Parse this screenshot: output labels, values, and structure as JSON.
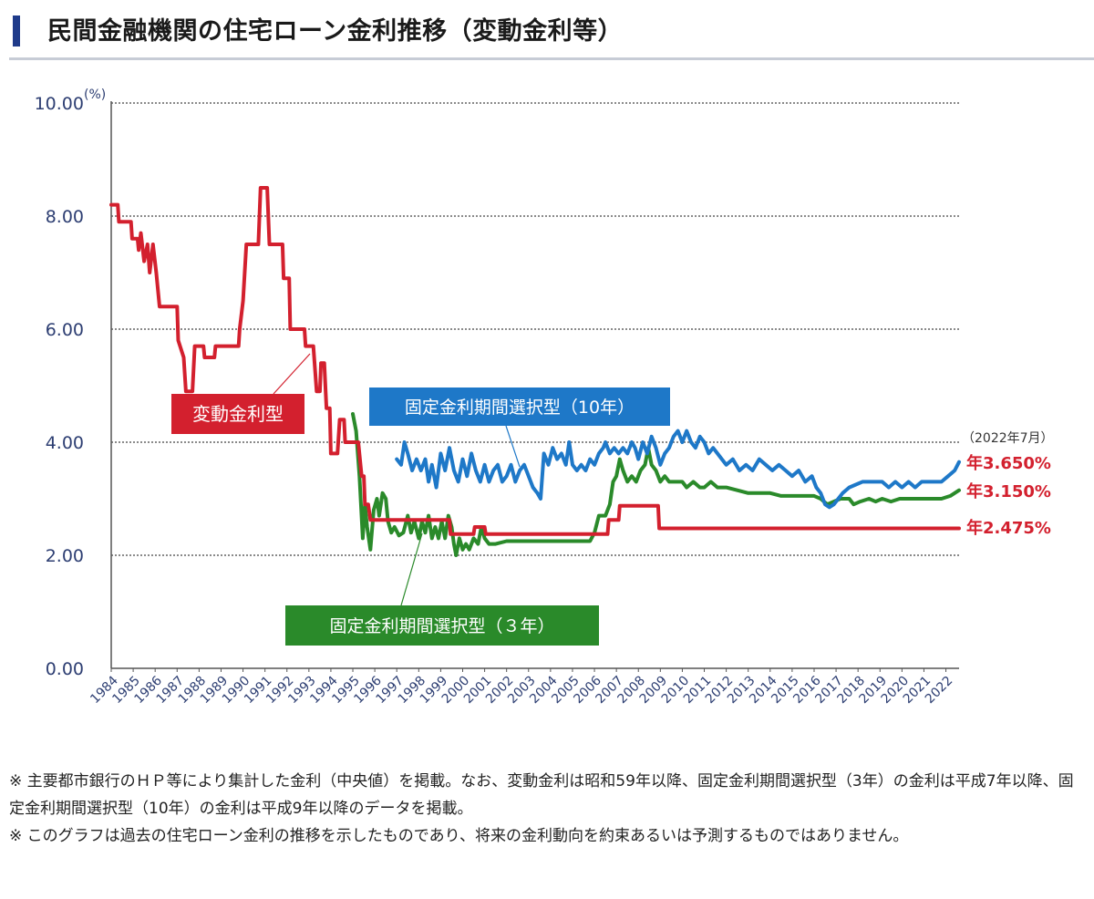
{
  "page": {
    "title": "民間金融機関の住宅ローン金利推移（変動金利等）",
    "notes": [
      "※ 主要都市銀行のＨＰ等により集計した金利（中央値）を掲載。なお、変動金利は昭和59年以降、固定金利期間選択型（3年）の金利は平成7年以降、固定金利期間選択型（10年）の金利は平成9年以降のデータを掲載。",
      "※ このグラフは過去の住宅ローン金利の推移を示したものであり、将来の金利動向を約束あるいは予測するものではありません。"
    ]
  },
  "chart_data": {
    "type": "line",
    "ylabel": "(%)",
    "ylim": [
      0,
      10
    ],
    "yticks": [
      "0.00",
      "2.00",
      "4.00",
      "6.00",
      "8.00",
      "10.00"
    ],
    "xlim": [
      1984,
      2022.6
    ],
    "xticks": [
      "1984",
      "1985",
      "1986",
      "1987",
      "1988",
      "1989",
      "1990",
      "1991",
      "1992",
      "1993",
      "1994",
      "1995",
      "1996",
      "1997",
      "1998",
      "1999",
      "2000",
      "2001",
      "2002",
      "2003",
      "2004",
      "2005",
      "2006",
      "2007",
      "2008",
      "2009",
      "2010",
      "2011",
      "2012",
      "2013",
      "2014",
      "2015",
      "2016",
      "2017",
      "2018",
      "2019",
      "2020",
      "2021",
      "2022"
    ],
    "grid": "horizontal dotted",
    "date_note": "（2022年7月）",
    "series": [
      {
        "name": "変動金利型",
        "color": "#d3202e",
        "end_label": "年2.475%",
        "points": [
          [
            1984,
            8.2
          ],
          [
            1984.3,
            8.2
          ],
          [
            1984.35,
            7.9
          ],
          [
            1984.9,
            7.9
          ],
          [
            1984.95,
            7.6
          ],
          [
            1985.2,
            7.6
          ],
          [
            1985.25,
            7.4
          ],
          [
            1985.35,
            7.7
          ],
          [
            1985.5,
            7.2
          ],
          [
            1985.65,
            7.5
          ],
          [
            1985.75,
            7.0
          ],
          [
            1985.9,
            7.5
          ],
          [
            1986.05,
            7.0
          ],
          [
            1986.2,
            6.4
          ],
          [
            1987.0,
            6.4
          ],
          [
            1987.05,
            5.8
          ],
          [
            1987.3,
            5.5
          ],
          [
            1987.4,
            4.9
          ],
          [
            1987.7,
            4.9
          ],
          [
            1987.8,
            5.7
          ],
          [
            1988.2,
            5.7
          ],
          [
            1988.25,
            5.5
          ],
          [
            1988.7,
            5.5
          ],
          [
            1988.75,
            5.7
          ],
          [
            1989.8,
            5.7
          ],
          [
            1989.85,
            6.0
          ],
          [
            1990.0,
            6.5
          ],
          [
            1990.15,
            7.5
          ],
          [
            1990.7,
            7.5
          ],
          [
            1990.8,
            8.5
          ],
          [
            1991.1,
            8.5
          ],
          [
            1991.2,
            7.5
          ],
          [
            1991.8,
            7.5
          ],
          [
            1991.85,
            6.9
          ],
          [
            1992.1,
            6.9
          ],
          [
            1992.15,
            6.0
          ],
          [
            1992.8,
            6.0
          ],
          [
            1992.85,
            5.7
          ],
          [
            1993.2,
            5.7
          ],
          [
            1993.35,
            4.9
          ],
          [
            1993.5,
            4.9
          ],
          [
            1993.55,
            5.4
          ],
          [
            1993.7,
            5.4
          ],
          [
            1993.8,
            4.6
          ],
          [
            1993.95,
            4.6
          ],
          [
            1994.0,
            3.8
          ],
          [
            1994.3,
            3.8
          ],
          [
            1994.4,
            4.4
          ],
          [
            1994.6,
            4.4
          ],
          [
            1994.65,
            4.0
          ],
          [
            1995.25,
            4.0
          ],
          [
            1995.4,
            3.4
          ],
          [
            1995.5,
            3.4
          ],
          [
            1995.55,
            2.9
          ],
          [
            1995.7,
            2.9
          ],
          [
            1995.8,
            2.625
          ],
          [
            1999.4,
            2.625
          ],
          [
            1999.45,
            2.375
          ],
          [
            2000.5,
            2.375
          ],
          [
            2000.55,
            2.5
          ],
          [
            2001.0,
            2.5
          ],
          [
            2001.05,
            2.375
          ],
          [
            2006.6,
            2.375
          ],
          [
            2006.65,
            2.625
          ],
          [
            2007.1,
            2.625
          ],
          [
            2007.15,
            2.875
          ],
          [
            2008.9,
            2.875
          ],
          [
            2008.95,
            2.475
          ],
          [
            2022.6,
            2.475
          ]
        ]
      },
      {
        "name": "固定金利期間選択型（１０年）",
        "color": "#1e78c8",
        "end_label": "年3.650%",
        "points": [
          [
            1997.0,
            3.7
          ],
          [
            1997.2,
            3.6
          ],
          [
            1997.35,
            4.0
          ],
          [
            1997.5,
            3.8
          ],
          [
            1997.7,
            3.5
          ],
          [
            1997.9,
            3.7
          ],
          [
            1998.1,
            3.5
          ],
          [
            1998.3,
            3.7
          ],
          [
            1998.45,
            3.3
          ],
          [
            1998.6,
            3.6
          ],
          [
            1998.8,
            3.2
          ],
          [
            1999.0,
            3.8
          ],
          [
            1999.2,
            3.5
          ],
          [
            1999.4,
            3.9
          ],
          [
            1999.6,
            3.5
          ],
          [
            1999.8,
            3.3
          ],
          [
            2000.0,
            3.7
          ],
          [
            2000.2,
            3.4
          ],
          [
            2000.4,
            3.8
          ],
          [
            2000.6,
            3.5
          ],
          [
            2000.8,
            3.3
          ],
          [
            2001.0,
            3.6
          ],
          [
            2001.2,
            3.3
          ],
          [
            2001.4,
            3.5
          ],
          [
            2001.6,
            3.6
          ],
          [
            2001.8,
            3.3
          ],
          [
            2002.0,
            3.4
          ],
          [
            2002.2,
            3.6
          ],
          [
            2002.4,
            3.3
          ],
          [
            2002.6,
            3.5
          ],
          [
            2002.8,
            3.6
          ],
          [
            2003.0,
            3.4
          ],
          [
            2003.2,
            3.2
          ],
          [
            2003.4,
            3.1
          ],
          [
            2003.55,
            3.0
          ],
          [
            2003.7,
            3.8
          ],
          [
            2003.9,
            3.6
          ],
          [
            2004.1,
            3.9
          ],
          [
            2004.3,
            3.7
          ],
          [
            2004.5,
            3.8
          ],
          [
            2004.7,
            3.6
          ],
          [
            2004.85,
            4.0
          ],
          [
            2005.0,
            3.6
          ],
          [
            2005.2,
            3.5
          ],
          [
            2005.4,
            3.6
          ],
          [
            2005.6,
            3.5
          ],
          [
            2005.8,
            3.7
          ],
          [
            2006.0,
            3.6
          ],
          [
            2006.2,
            3.8
          ],
          [
            2006.4,
            3.9
          ],
          [
            2006.5,
            4.0
          ],
          [
            2006.7,
            3.8
          ],
          [
            2006.9,
            3.9
          ],
          [
            2007.1,
            3.8
          ],
          [
            2007.3,
            3.9
          ],
          [
            2007.5,
            3.8
          ],
          [
            2007.7,
            4.0
          ],
          [
            2007.85,
            3.9
          ],
          [
            2008.0,
            3.7
          ],
          [
            2008.2,
            4.0
          ],
          [
            2008.4,
            3.8
          ],
          [
            2008.6,
            4.1
          ],
          [
            2008.8,
            3.9
          ],
          [
            2009.0,
            3.6
          ],
          [
            2009.2,
            3.8
          ],
          [
            2009.4,
            3.9
          ],
          [
            2009.6,
            4.1
          ],
          [
            2009.8,
            4.2
          ],
          [
            2010.0,
            4.0
          ],
          [
            2010.2,
            4.2
          ],
          [
            2010.4,
            4.0
          ],
          [
            2010.6,
            3.9
          ],
          [
            2010.8,
            4.1
          ],
          [
            2011.0,
            4.0
          ],
          [
            2011.2,
            3.8
          ],
          [
            2011.4,
            3.9
          ],
          [
            2011.6,
            3.8
          ],
          [
            2011.8,
            3.7
          ],
          [
            2012.0,
            3.6
          ],
          [
            2012.3,
            3.7
          ],
          [
            2012.6,
            3.5
          ],
          [
            2012.9,
            3.6
          ],
          [
            2013.2,
            3.5
          ],
          [
            2013.5,
            3.7
          ],
          [
            2013.8,
            3.6
          ],
          [
            2014.1,
            3.5
          ],
          [
            2014.4,
            3.6
          ],
          [
            2014.7,
            3.5
          ],
          [
            2015.0,
            3.4
          ],
          [
            2015.3,
            3.5
          ],
          [
            2015.6,
            3.3
          ],
          [
            2015.9,
            3.4
          ],
          [
            2016.1,
            3.2
          ],
          [
            2016.3,
            3.1
          ],
          [
            2016.5,
            2.9
          ],
          [
            2016.7,
            2.85
          ],
          [
            2016.9,
            2.9
          ],
          [
            2017.1,
            3.0
          ],
          [
            2017.3,
            3.1
          ],
          [
            2017.6,
            3.2
          ],
          [
            2017.9,
            3.25
          ],
          [
            2018.2,
            3.3
          ],
          [
            2018.5,
            3.3
          ],
          [
            2018.8,
            3.3
          ],
          [
            2019.1,
            3.3
          ],
          [
            2019.4,
            3.2
          ],
          [
            2019.7,
            3.3
          ],
          [
            2020.0,
            3.2
          ],
          [
            2020.3,
            3.3
          ],
          [
            2020.6,
            3.2
          ],
          [
            2020.9,
            3.3
          ],
          [
            2021.2,
            3.3
          ],
          [
            2021.5,
            3.3
          ],
          [
            2021.8,
            3.3
          ],
          [
            2022.1,
            3.4
          ],
          [
            2022.4,
            3.5
          ],
          [
            2022.6,
            3.65
          ]
        ]
      },
      {
        "name": "固定金利期間選択型（３年）",
        "color": "#2a8a2a",
        "end_label": "年3.150%",
        "points": [
          [
            1995.0,
            4.5
          ],
          [
            1995.15,
            4.2
          ],
          [
            1995.3,
            3.4
          ],
          [
            1995.45,
            2.3
          ],
          [
            1995.55,
            2.9
          ],
          [
            1995.65,
            2.5
          ],
          [
            1995.8,
            2.1
          ],
          [
            1995.95,
            2.8
          ],
          [
            1996.1,
            3.0
          ],
          [
            1996.2,
            2.7
          ],
          [
            1996.35,
            3.1
          ],
          [
            1996.5,
            3.0
          ],
          [
            1996.6,
            2.6
          ],
          [
            1996.75,
            2.4
          ],
          [
            1996.9,
            2.5
          ],
          [
            1997.1,
            2.35
          ],
          [
            1997.3,
            2.4
          ],
          [
            1997.5,
            2.7
          ],
          [
            1997.65,
            2.4
          ],
          [
            1997.8,
            2.6
          ],
          [
            1998.0,
            2.3
          ],
          [
            1998.15,
            2.6
          ],
          [
            1998.3,
            2.4
          ],
          [
            1998.45,
            2.7
          ],
          [
            1998.6,
            2.3
          ],
          [
            1998.75,
            2.5
          ],
          [
            1998.9,
            2.3
          ],
          [
            1999.05,
            2.6
          ],
          [
            1999.2,
            2.3
          ],
          [
            1999.35,
            2.7
          ],
          [
            1999.5,
            2.5
          ],
          [
            1999.6,
            2.2
          ],
          [
            1999.7,
            2.0
          ],
          [
            1999.85,
            2.3
          ],
          [
            2000.0,
            2.1
          ],
          [
            2000.15,
            2.2
          ],
          [
            2000.3,
            2.1
          ],
          [
            2000.5,
            2.3
          ],
          [
            2000.7,
            2.2
          ],
          [
            2000.85,
            2.5
          ],
          [
            2001.0,
            2.3
          ],
          [
            2001.2,
            2.2
          ],
          [
            2001.5,
            2.2
          ],
          [
            2002.0,
            2.25
          ],
          [
            2003.0,
            2.25
          ],
          [
            2004.0,
            2.25
          ],
          [
            2005.0,
            2.25
          ],
          [
            2005.8,
            2.25
          ],
          [
            2006.0,
            2.4
          ],
          [
            2006.2,
            2.7
          ],
          [
            2006.5,
            2.7
          ],
          [
            2006.7,
            2.9
          ],
          [
            2006.85,
            3.3
          ],
          [
            2007.0,
            3.4
          ],
          [
            2007.15,
            3.7
          ],
          [
            2007.3,
            3.5
          ],
          [
            2007.5,
            3.3
          ],
          [
            2007.7,
            3.4
          ],
          [
            2007.9,
            3.3
          ],
          [
            2008.1,
            3.5
          ],
          [
            2008.3,
            3.6
          ],
          [
            2008.45,
            3.9
          ],
          [
            2008.6,
            3.6
          ],
          [
            2008.8,
            3.5
          ],
          [
            2009.0,
            3.3
          ],
          [
            2009.2,
            3.4
          ],
          [
            2009.4,
            3.3
          ],
          [
            2009.6,
            3.3
          ],
          [
            2009.8,
            3.3
          ],
          [
            2010.0,
            3.3
          ],
          [
            2010.2,
            3.2
          ],
          [
            2010.5,
            3.3
          ],
          [
            2010.8,
            3.2
          ],
          [
            2011.0,
            3.2
          ],
          [
            2011.3,
            3.3
          ],
          [
            2011.6,
            3.2
          ],
          [
            2012.0,
            3.2
          ],
          [
            2012.5,
            3.15
          ],
          [
            2013.0,
            3.1
          ],
          [
            2014.0,
            3.1
          ],
          [
            2014.5,
            3.05
          ],
          [
            2015.0,
            3.05
          ],
          [
            2016.0,
            3.05
          ],
          [
            2016.3,
            3.0
          ],
          [
            2016.6,
            2.9
          ],
          [
            2016.9,
            2.95
          ],
          [
            2017.2,
            3.0
          ],
          [
            2017.6,
            3.0
          ],
          [
            2017.8,
            2.9
          ],
          [
            2018.1,
            2.95
          ],
          [
            2018.5,
            3.0
          ],
          [
            2018.8,
            2.95
          ],
          [
            2019.1,
            3.0
          ],
          [
            2019.5,
            2.95
          ],
          [
            2019.9,
            3.0
          ],
          [
            2020.3,
            3.0
          ],
          [
            2020.8,
            3.0
          ],
          [
            2021.3,
            3.0
          ],
          [
            2021.8,
            3.0
          ],
          [
            2022.2,
            3.05
          ],
          [
            2022.4,
            3.1
          ],
          [
            2022.6,
            3.15
          ]
        ]
      }
    ],
    "callouts": {
      "hendo": "変動金利型",
      "fixed10": "固定金利期間選択型（10年）",
      "fixed3": "固定金利期間選択型（３年）"
    }
  }
}
